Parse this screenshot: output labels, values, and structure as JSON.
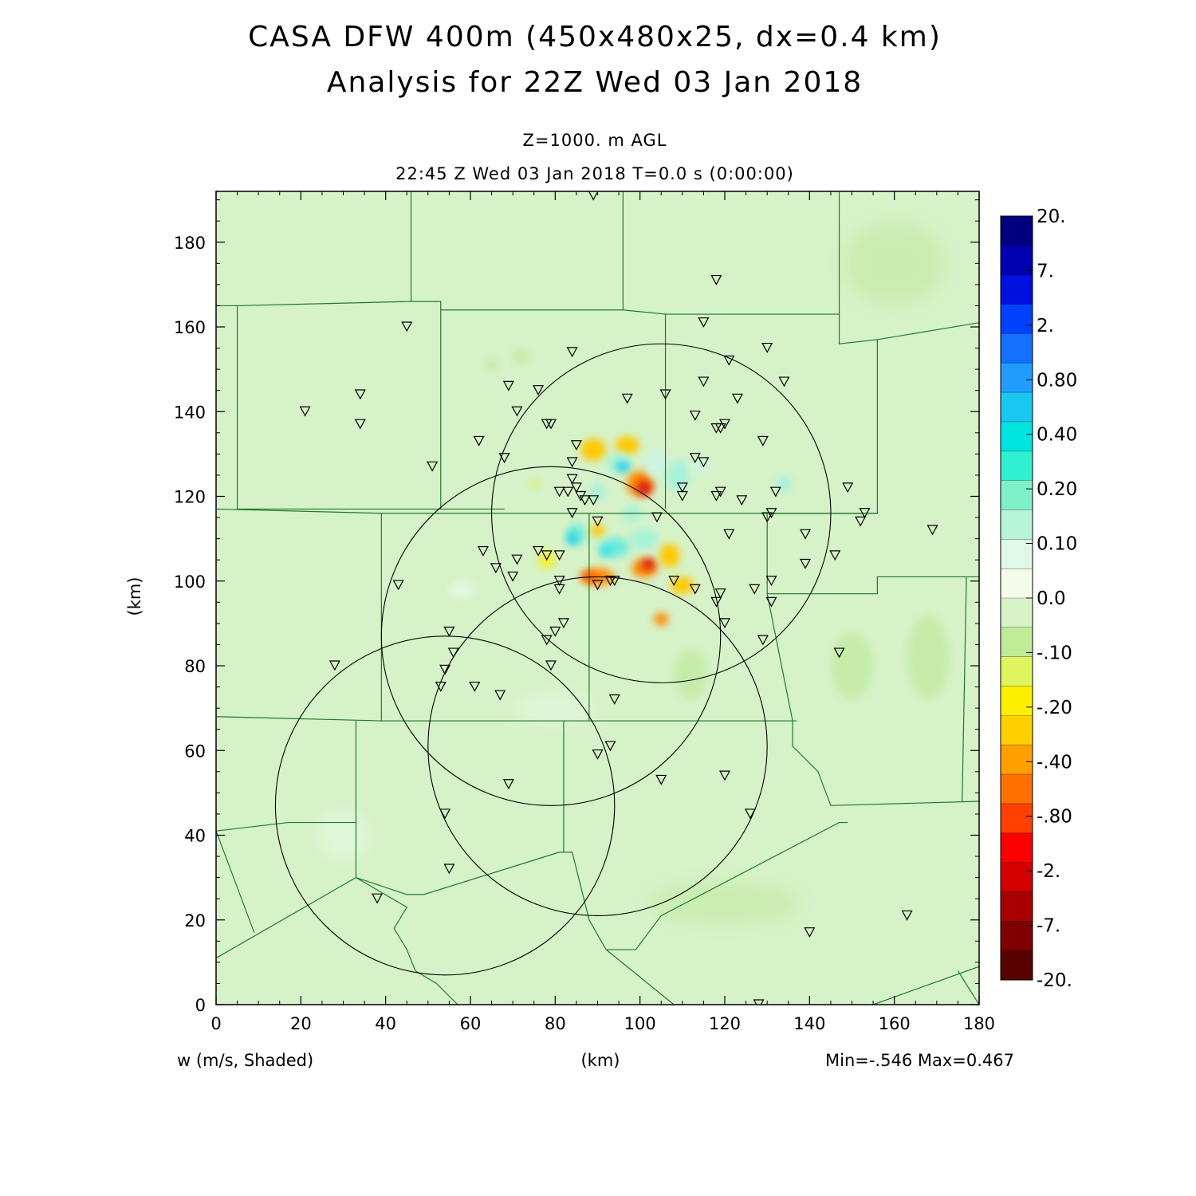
{
  "header": {
    "title_line1": "CASA DFW 400m (450x480x25, dx=0.4 km)",
    "title_line2": "Analysis for 22Z Wed 03 Jan 2018",
    "level": "Z=1000. m AGL",
    "time_line": "22:45 Z Wed 03 Jan 2018    T=0.0 s (0:00:00)"
  },
  "axes": {
    "x_ticks": [
      "0",
      "20",
      "40",
      "60",
      "80",
      "100",
      "120",
      "140",
      "160",
      "180"
    ],
    "y_ticks": [
      "0",
      "20",
      "40",
      "60",
      "80",
      "100",
      "120",
      "140",
      "160",
      "180"
    ],
    "xlabel": "(km)",
    "ylabel": "(km)",
    "xlim": [
      0,
      180
    ],
    "ylim": [
      0,
      192
    ]
  },
  "footer": {
    "variable_label": "w (m/s, Shaded)",
    "xlabel": "(km)",
    "minmax": "Min=-.546 Max=0.467"
  },
  "colorbar": {
    "labels": [
      "20.",
      "7.",
      "2.",
      "0.80",
      "0.40",
      "0.20",
      "0.10",
      "0.0",
      "-.10",
      "-.20",
      "-.40",
      "-.80",
      "-2.",
      "-7.",
      "-20."
    ],
    "colors": [
      "#000080",
      "#0000b0",
      "#0010e0",
      "#0040ff",
      "#1470ff",
      "#209cff",
      "#18c8f0",
      "#00e4e0",
      "#30f0d0",
      "#80f0c8",
      "#b8f4d8",
      "#e0f8e8",
      "#f4fbe8",
      "#d8f2c8",
      "#c0ec98",
      "#e0f460",
      "#fcf000",
      "#ffd000",
      "#ffa000",
      "#ff7000",
      "#ff4000",
      "#ff0000",
      "#d40000",
      "#a80000",
      "#800000",
      "#580000"
    ]
  },
  "map": {
    "stations": [
      [
        89,
        191
      ],
      [
        118,
        171
      ],
      [
        45,
        160
      ],
      [
        115,
        161
      ],
      [
        21,
        140
      ],
      [
        34,
        144
      ],
      [
        34,
        137
      ],
      [
        130,
        155
      ],
      [
        121,
        152
      ],
      [
        84,
        154
      ],
      [
        69,
        146
      ],
      [
        76,
        145
      ],
      [
        106,
        144
      ],
      [
        115,
        147
      ],
      [
        123,
        143
      ],
      [
        134,
        147
      ],
      [
        97,
        143
      ],
      [
        71,
        140
      ],
      [
        79,
        137
      ],
      [
        78,
        137
      ],
      [
        113,
        139
      ],
      [
        118,
        136
      ],
      [
        120,
        137
      ],
      [
        119,
        136
      ],
      [
        129,
        133
      ],
      [
        62,
        133
      ],
      [
        51,
        127
      ],
      [
        68,
        129
      ],
      [
        85,
        132
      ],
      [
        113,
        129
      ],
      [
        115,
        128
      ],
      [
        84,
        128
      ],
      [
        84,
        124
      ],
      [
        83,
        121
      ],
      [
        81,
        121
      ],
      [
        85,
        122
      ],
      [
        86,
        120
      ],
      [
        87,
        119
      ],
      [
        89,
        119
      ],
      [
        110,
        122
      ],
      [
        110,
        120
      ],
      [
        118,
        120
      ],
      [
        119,
        121
      ],
      [
        124,
        119
      ],
      [
        132,
        121
      ],
      [
        131,
        116
      ],
      [
        130,
        115
      ],
      [
        104,
        115
      ],
      [
        84,
        116
      ],
      [
        90,
        114
      ],
      [
        139,
        111
      ],
      [
        121,
        111
      ],
      [
        149,
        122
      ],
      [
        153,
        116
      ],
      [
        152,
        114
      ],
      [
        169,
        112
      ],
      [
        63,
        107
      ],
      [
        66,
        103
      ],
      [
        70,
        101
      ],
      [
        71,
        105
      ],
      [
        76,
        107
      ],
      [
        78,
        106
      ],
      [
        81,
        106
      ],
      [
        43,
        99
      ],
      [
        81,
        100
      ],
      [
        81,
        98
      ],
      [
        90,
        99
      ],
      [
        93,
        100
      ],
      [
        94,
        100
      ],
      [
        108,
        100
      ],
      [
        113,
        98
      ],
      [
        119,
        97
      ],
      [
        127,
        98
      ],
      [
        131,
        100
      ],
      [
        131,
        95
      ],
      [
        118,
        95
      ],
      [
        139,
        104
      ],
      [
        146,
        106
      ],
      [
        82,
        90
      ],
      [
        120,
        90
      ],
      [
        78,
        86
      ],
      [
        80,
        88
      ],
      [
        55,
        88
      ],
      [
        56,
        83
      ],
      [
        54,
        79
      ],
      [
        53,
        75
      ],
      [
        28,
        80
      ],
      [
        61,
        75
      ],
      [
        67,
        73
      ],
      [
        79,
        80
      ],
      [
        94,
        72
      ],
      [
        129,
        86
      ],
      [
        147,
        83
      ],
      [
        90,
        59
      ],
      [
        93,
        61
      ],
      [
        120,
        54
      ],
      [
        105,
        53
      ],
      [
        69,
        52
      ],
      [
        54,
        45
      ],
      [
        126,
        45
      ],
      [
        55,
        32
      ],
      [
        38,
        25
      ],
      [
        163,
        21
      ],
      [
        140,
        17
      ],
      [
        128,
        0
      ]
    ],
    "range_rings": [
      {
        "center": [
          105,
          116
        ],
        "radius": 40
      },
      {
        "center": [
          79,
          87
        ],
        "radius": 40
      },
      {
        "center": [
          90,
          61
        ],
        "radius": 40
      },
      {
        "center": [
          54,
          47
        ],
        "radius": 40
      }
    ],
    "county_lines": [
      [
        [
          0,
          165
        ],
        [
          5,
          165
        ],
        [
          5,
          117
        ],
        [
          68,
          117
        ]
      ],
      [
        [
          5,
          165
        ],
        [
          46,
          166
        ],
        [
          46,
          192
        ]
      ],
      [
        [
          46,
          166
        ],
        [
          53,
          166
        ],
        [
          53,
          164
        ],
        [
          96,
          164
        ],
        [
          96,
          192
        ]
      ],
      [
        [
          53,
          164
        ],
        [
          53,
          117
        ]
      ],
      [
        [
          96,
          164
        ],
        [
          106,
          163
        ],
        [
          106,
          117
        ]
      ],
      [
        [
          106,
          163
        ],
        [
          147,
          163
        ],
        [
          147,
          192
        ]
      ],
      [
        [
          147,
          163
        ],
        [
          147,
          156
        ],
        [
          156,
          157
        ],
        [
          180,
          161
        ]
      ],
      [
        [
          156,
          157
        ],
        [
          156,
          116
        ],
        [
          130,
          116
        ]
      ],
      [
        [
          0,
          117
        ],
        [
          39,
          116
        ],
        [
          77,
          116
        ],
        [
          110,
          116
        ],
        [
          156,
          116
        ]
      ],
      [
        [
          39,
          116
        ],
        [
          39,
          67
        ]
      ],
      [
        [
          0,
          68
        ],
        [
          39,
          67
        ],
        [
          88,
          67
        ],
        [
          137,
          67
        ]
      ],
      [
        [
          88,
          116
        ],
        [
          88,
          67
        ]
      ],
      [
        [
          130,
          116
        ],
        [
          130,
          97
        ],
        [
          156,
          97
        ],
        [
          156,
          101
        ],
        [
          177,
          101
        ],
        [
          180,
          101
        ]
      ],
      [
        [
          130,
          97
        ],
        [
          136,
          67
        ],
        [
          136,
          61
        ],
        [
          142,
          55
        ],
        [
          145,
          47
        ],
        [
          180,
          48
        ]
      ],
      [
        [
          177,
          101
        ],
        [
          176,
          48
        ]
      ],
      [
        [
          33,
          67
        ],
        [
          33,
          37
        ],
        [
          33,
          30
        ],
        [
          45,
          26
        ],
        [
          49,
          26
        ],
        [
          81,
          36
        ],
        [
          84,
          36
        ],
        [
          88,
          20
        ],
        [
          92,
          13
        ],
        [
          99,
          13
        ],
        [
          105,
          21
        ],
        [
          147,
          43
        ],
        [
          149,
          43
        ]
      ],
      [
        [
          82,
          67
        ],
        [
          82,
          36
        ]
      ],
      [
        [
          0,
          41
        ],
        [
          9,
          17
        ]
      ],
      [
        [
          0,
          11
        ],
        [
          33,
          30
        ]
      ],
      [
        [
          17,
          43
        ],
        [
          33,
          43
        ]
      ],
      [
        [
          0,
          41
        ],
        [
          17,
          43
        ]
      ],
      [
        [
          33,
          30
        ],
        [
          45,
          23
        ],
        [
          42,
          18
        ],
        [
          45,
          13
        ],
        [
          47,
          8
        ],
        [
          52,
          5
        ],
        [
          57,
          0
        ]
      ],
      [
        [
          92,
          13
        ],
        [
          108,
          0
        ]
      ],
      [
        [
          155,
          0
        ],
        [
          180,
          9
        ]
      ],
      [
        [
          175,
          8
        ],
        [
          180,
          0
        ]
      ]
    ]
  },
  "anomalies": [
    {
      "x": 97,
      "y": 132,
      "rx": 2.8,
      "ry": 2.2,
      "level": -0.25
    },
    {
      "x": 89,
      "y": 131,
      "rx": 3.0,
      "ry": 2.6,
      "level": -0.2
    },
    {
      "x": 95,
      "y": 128,
      "rx": 3.0,
      "ry": 2.3,
      "level": 0.15
    },
    {
      "x": 96,
      "y": 127,
      "rx": 1.6,
      "ry": 1.2,
      "level": 0.45
    },
    {
      "x": 100,
      "y": 123,
      "rx": 3.2,
      "ry": 3.0,
      "level": -0.35
    },
    {
      "x": 101,
      "y": 122,
      "rx": 1.8,
      "ry": 1.7,
      "level": -0.55
    },
    {
      "x": 104,
      "y": 128,
      "rx": 2.6,
      "ry": 3.8,
      "level": 0.08
    },
    {
      "x": 109,
      "y": 125,
      "rx": 2.8,
      "ry": 3.6,
      "level": 0.15
    },
    {
      "x": 114,
      "y": 127,
      "rx": 2.2,
      "ry": 2.0,
      "level": 0.08
    },
    {
      "x": 134,
      "y": 123,
      "rx": 1.8,
      "ry": 2.0,
      "level": 0.15
    },
    {
      "x": 90,
      "y": 121,
      "rx": 1.8,
      "ry": 2.0,
      "level": 0.15
    },
    {
      "x": 85,
      "y": 111,
      "rx": 2.2,
      "ry": 2.6,
      "level": 0.25
    },
    {
      "x": 84,
      "y": 110,
      "rx": 1.2,
      "ry": 1.4,
      "level": 0.45
    },
    {
      "x": 94,
      "y": 108,
      "rx": 3.6,
      "ry": 2.4,
      "level": 0.2
    },
    {
      "x": 92,
      "y": 107,
      "rx": 1.6,
      "ry": 1.2,
      "level": 0.35
    },
    {
      "x": 101,
      "y": 110,
      "rx": 3.5,
      "ry": 2.5,
      "level": 0.15
    },
    {
      "x": 90,
      "y": 112,
      "rx": 1.6,
      "ry": 1.5,
      "level": -0.25
    },
    {
      "x": 98,
      "y": 116,
      "rx": 2.4,
      "ry": 1.8,
      "level": 0.1
    },
    {
      "x": 90,
      "y": 101,
      "rx": 4.0,
      "ry": 2.0,
      "level": -0.3
    },
    {
      "x": 88,
      "y": 101,
      "rx": 1.6,
      "ry": 1.2,
      "level": -0.45
    },
    {
      "x": 101,
      "y": 103,
      "rx": 3.0,
      "ry": 2.2,
      "level": -0.35
    },
    {
      "x": 102,
      "y": 104,
      "rx": 1.6,
      "ry": 1.3,
      "level": -0.55
    },
    {
      "x": 107,
      "y": 106,
      "rx": 2.4,
      "ry": 2.8,
      "level": -0.25
    },
    {
      "x": 110,
      "y": 99,
      "rx": 2.8,
      "ry": 2.0,
      "level": -0.2
    },
    {
      "x": 105,
      "y": 91,
      "rx": 1.7,
      "ry": 1.5,
      "level": -0.3
    },
    {
      "x": 78,
      "y": 105,
      "rx": 2.0,
      "ry": 2.2,
      "level": -0.15
    },
    {
      "x": 75,
      "y": 123,
      "rx": 1.6,
      "ry": 1.2,
      "level": -0.12
    },
    {
      "x": 72,
      "y": 153,
      "rx": 2.2,
      "ry": 1.8,
      "level": -0.08
    },
    {
      "x": 65,
      "y": 151,
      "rx": 1.8,
      "ry": 1.6,
      "level": -0.08
    },
    {
      "x": 58,
      "y": 98,
      "rx": 3.0,
      "ry": 2.0,
      "level": 0.02
    },
    {
      "x": 112,
      "y": 78,
      "rx": 4.0,
      "ry": 6.0,
      "level": -0.08
    },
    {
      "x": 168,
      "y": 82,
      "rx": 5.0,
      "ry": 10.0,
      "level": -0.08
    },
    {
      "x": 150,
      "y": 80,
      "rx": 5.0,
      "ry": 8.0,
      "level": -0.06
    },
    {
      "x": 120,
      "y": 24,
      "rx": 18.0,
      "ry": 5.0,
      "level": -0.06
    },
    {
      "x": 80,
      "y": 70,
      "rx": 10.0,
      "ry": 3.0,
      "level": 0.02
    },
    {
      "x": 160,
      "y": 175,
      "rx": 12.0,
      "ry": 10.0,
      "level": -0.05
    },
    {
      "x": 30,
      "y": 40,
      "rx": 6.0,
      "ry": 6.0,
      "level": 0.02
    }
  ]
}
